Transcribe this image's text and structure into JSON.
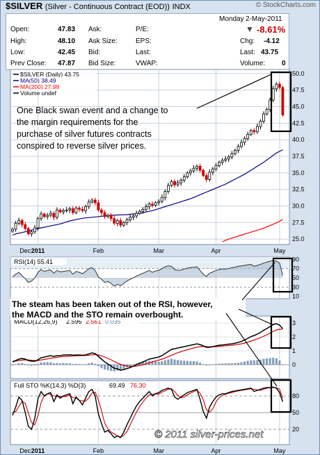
{
  "header": {
    "ticker": "$SILVER",
    "name": "(Silver - Continuous Contract (EOD))",
    "exchange": "INDX",
    "brand": "© StockCharts.com",
    "day": "Monday",
    "date": "2-May-2011",
    "pct_change": "-8.61%"
  },
  "quote": {
    "open_label": "Open:",
    "open": "47.83",
    "high_label": "High:",
    "high": "48.10",
    "low_label": "Low:",
    "low": "42.45",
    "prev_label": "Prev Close:",
    "prev": "47.87",
    "ask_label": "Ask:",
    "ask_size_label": "Ask Size:",
    "bid_label": "Bid:",
    "bid_size_label": "Bid Size:",
    "pe_label": "P/E:",
    "eps_label": "EPS:",
    "last_label": "Last:",
    "vwap_label": "VWAP:",
    "chg_label": "Chg:",
    "chg": "-4.12",
    "last2_label": "Last:",
    "last": "43.75",
    "volume_label": "Volume:",
    "volume": "0"
  },
  "annotations": {
    "swan": [
      "One Black swan event and a change to",
      "the margin requirements for the",
      "purchase of silver futures contracts",
      "conspired to reverse silver prices."
    ],
    "rsi": [
      "The steam has been taken out of the RSI, however,",
      "the MACD and the STO remain overbought."
    ],
    "copyright": "© 2011 silver-prices.net"
  },
  "colors": {
    "price_up": "#000000",
    "price_down": "#cc0000",
    "ma50": "#000080",
    "ma200": "#ff0000",
    "macd_line": "#000000",
    "signal_line": "#cc0000",
    "histogram": "#7f9bb8",
    "background": "#d6e2ef",
    "plot": "#ffffff"
  },
  "chart_data": [
    {
      "type": "line",
      "legend": [
        "$SILVER (Daily) 43.75",
        "MA(50) 38.49",
        "MA(200) 27.98",
        "Volume undef"
      ],
      "x_tick_labels": [
        "Dec",
        "2011",
        "Feb",
        "Mar",
        "Apr",
        "May"
      ],
      "yticks": [
        "50.0",
        "47.5",
        "45.0",
        "42.5",
        "40.0",
        "37.5",
        "35.0",
        "32.5",
        "30.0",
        "27.5",
        "25.0"
      ],
      "ylim": [
        24.5,
        50.3
      ],
      "x_range": [
        0,
        86
      ],
      "month_starts": [
        8,
        27,
        46,
        64,
        84
      ],
      "series": [
        {
          "name": "$SILVER (Daily) 43.75",
          "values": [
            26.5,
            27.4,
            27.8,
            27.2,
            26.6,
            25.8,
            26.1,
            26.7,
            28.1,
            28.8,
            28.4,
            28.6,
            28.9,
            28.3,
            29.4,
            29.1,
            29.3,
            29.4,
            29.6,
            29.0,
            29.7,
            29.5,
            29.3,
            29.9,
            30.6,
            30.9,
            30.5,
            29.4,
            29.0,
            28.4,
            28.6,
            28.1,
            27.4,
            27.8,
            27.1,
            27.5,
            27.9,
            28.3,
            28.5,
            28.9,
            29.2,
            29.5,
            29.9,
            30.3,
            30.1,
            30.5,
            30.7,
            31.3,
            32.2,
            33.1,
            33.7,
            33.2,
            33.5,
            33.9,
            34.4,
            35.0,
            35.3,
            35.7,
            36.0,
            35.4,
            34.6,
            34.0,
            35.1,
            35.6,
            36.1,
            36.6,
            36.9,
            37.1,
            37.4,
            37.9,
            38.4,
            39.0,
            39.6,
            40.2,
            40.8,
            41.4,
            41.2,
            42.0,
            42.8,
            43.9,
            44.6,
            46.0,
            47.7,
            48.4,
            47.9,
            43.75
          ]
        },
        {
          "name": "MA(50) 38.49",
          "values": [
            25.6,
            25.8,
            25.9,
            26.0,
            26.1,
            26.2,
            26.35,
            26.5,
            26.6,
            26.7,
            26.8,
            26.9,
            27.0,
            27.1,
            27.2,
            27.3,
            27.45,
            27.6,
            27.75,
            27.85,
            27.95,
            28.05,
            28.15,
            28.2,
            28.25,
            28.3,
            28.35,
            28.4,
            28.45,
            28.5,
            28.55,
            28.6,
            28.62,
            28.64,
            28.66,
            28.68,
            28.7,
            28.75,
            28.8,
            28.85,
            28.9,
            29.0,
            29.1,
            29.2,
            29.3,
            29.45,
            29.6,
            29.75,
            29.9,
            30.05,
            30.2,
            30.35,
            30.5,
            30.65,
            30.8,
            30.95,
            31.1,
            31.3,
            31.5,
            31.7,
            31.9,
            32.1,
            32.3,
            32.5,
            32.7,
            32.9,
            33.1,
            33.3,
            33.55,
            33.8,
            34.05,
            34.3,
            34.55,
            34.8,
            35.1,
            35.4,
            35.7,
            36.0,
            36.3,
            36.6,
            36.95,
            37.3,
            37.65,
            38.0,
            38.25,
            38.49
          ]
        },
        {
          "name": "MA(200) 27.98",
          "values": [
            null,
            null,
            null,
            null,
            null,
            null,
            null,
            null,
            null,
            null,
            null,
            null,
            null,
            null,
            null,
            null,
            null,
            null,
            null,
            null,
            null,
            null,
            null,
            null,
            null,
            null,
            null,
            null,
            null,
            null,
            null,
            null,
            null,
            null,
            null,
            null,
            null,
            null,
            null,
            null,
            null,
            null,
            null,
            null,
            null,
            null,
            null,
            null,
            null,
            null,
            null,
            null,
            null,
            null,
            null,
            null,
            null,
            null,
            null,
            null,
            null,
            null,
            null,
            null,
            null,
            null,
            24.6,
            24.8,
            25.0,
            25.15,
            25.3,
            25.45,
            25.6,
            25.75,
            25.9,
            26.05,
            26.2,
            26.35,
            26.5,
            26.65,
            26.85,
            27.05,
            27.25,
            27.45,
            27.7,
            27.98
          ]
        }
      ]
    },
    {
      "type": "line",
      "legend": [
        "RSI(14) 55.41"
      ],
      "yticks": [
        "90",
        "70",
        "50",
        "30",
        "10"
      ],
      "ylim": [
        5,
        95
      ],
      "series": [
        {
          "name": "RSI(14) 55.41",
          "values": [
            52,
            58,
            62,
            55,
            48,
            40,
            43,
            50,
            62,
            68,
            64,
            66,
            67,
            60,
            66,
            63,
            64,
            65,
            66,
            58,
            64,
            62,
            59,
            64,
            70,
            72,
            66,
            52,
            47,
            40,
            42,
            38,
            32,
            36,
            33,
            38,
            43,
            47,
            50,
            54,
            57,
            60,
            63,
            66,
            62,
            65,
            66,
            70,
            74,
            76,
            75,
            68,
            66,
            67,
            69,
            71,
            72,
            73,
            74,
            66,
            58,
            53,
            60,
            63,
            66,
            68,
            69,
            69,
            70,
            72,
            73,
            75,
            76,
            77,
            78,
            79,
            75,
            77,
            79,
            82,
            84,
            86,
            87,
            86,
            82,
            55.41
          ]
        }
      ]
    },
    {
      "type": "line",
      "legend": [
        "MACD(12,26,9)",
        "2.596",
        "2.561",
        "0.035"
      ],
      "yticks": [
        "3",
        "2",
        "1",
        "0"
      ],
      "ylim": [
        -0.8,
        3.3
      ],
      "series": [
        {
          "name": "2.596",
          "values": [
            0.2,
            0.3,
            0.4,
            0.45,
            0.4,
            0.3,
            0.25,
            0.25,
            0.35,
            0.5,
            0.55,
            0.6,
            0.65,
            0.6,
            0.65,
            0.65,
            0.7,
            0.7,
            0.72,
            0.68,
            0.7,
            0.7,
            0.68,
            0.7,
            0.78,
            0.85,
            0.8,
            0.6,
            0.4,
            0.2,
            0.05,
            -0.1,
            -0.25,
            -0.3,
            -0.4,
            -0.35,
            -0.28,
            -0.2,
            -0.1,
            0.0,
            0.1,
            0.2,
            0.3,
            0.4,
            0.45,
            0.5,
            0.55,
            0.65,
            0.8,
            0.95,
            1.1,
            1.15,
            1.2,
            1.25,
            1.3,
            1.35,
            1.4,
            1.45,
            1.5,
            1.45,
            1.35,
            1.25,
            1.25,
            1.3,
            1.35,
            1.4,
            1.42,
            1.45,
            1.48,
            1.5,
            1.55,
            1.6,
            1.68,
            1.78,
            1.9,
            2.02,
            2.1,
            2.2,
            2.32,
            2.48,
            2.6,
            2.75,
            2.9,
            2.95,
            2.85,
            2.596
          ]
        },
        {
          "name": "2.561",
          "values": [
            0.25,
            0.27,
            0.3,
            0.33,
            0.35,
            0.34,
            0.32,
            0.3,
            0.3,
            0.34,
            0.38,
            0.42,
            0.47,
            0.5,
            0.53,
            0.56,
            0.58,
            0.6,
            0.62,
            0.63,
            0.64,
            0.65,
            0.65,
            0.66,
            0.68,
            0.71,
            0.73,
            0.7,
            0.64,
            0.55,
            0.45,
            0.35,
            0.23,
            0.12,
            0.02,
            -0.05,
            -0.1,
            -0.12,
            -0.12,
            -0.1,
            -0.06,
            0.0,
            0.06,
            0.13,
            0.2,
            0.27,
            0.33,
            0.4,
            0.48,
            0.58,
            0.68,
            0.78,
            0.86,
            0.94,
            1.01,
            1.08,
            1.14,
            1.2,
            1.26,
            1.3,
            1.31,
            1.3,
            1.29,
            1.29,
            1.3,
            1.32,
            1.34,
            1.36,
            1.38,
            1.4,
            1.43,
            1.46,
            1.5,
            1.55,
            1.62,
            1.7,
            1.78,
            1.86,
            1.95,
            2.05,
            2.15,
            2.27,
            2.4,
            2.5,
            2.55,
            2.561
          ]
        },
        {
          "name": "0.035",
          "values": [
            -0.05,
            0.03,
            0.1,
            0.12,
            0.05,
            -0.04,
            -0.07,
            -0.05,
            0.05,
            0.16,
            0.17,
            0.18,
            0.18,
            0.1,
            0.12,
            0.09,
            0.12,
            0.1,
            0.1,
            0.05,
            0.06,
            0.05,
            0.03,
            0.04,
            0.1,
            0.14,
            0.07,
            -0.1,
            -0.24,
            -0.35,
            -0.4,
            -0.45,
            -0.48,
            -0.42,
            -0.42,
            -0.3,
            -0.18,
            -0.08,
            0.02,
            0.1,
            0.16,
            0.2,
            0.24,
            0.27,
            0.25,
            0.23,
            0.22,
            0.25,
            0.32,
            0.37,
            0.42,
            0.37,
            0.34,
            0.31,
            0.29,
            0.27,
            0.26,
            0.25,
            0.24,
            0.15,
            0.04,
            -0.05,
            -0.04,
            0.01,
            0.05,
            0.08,
            0.08,
            0.09,
            0.1,
            0.1,
            0.12,
            0.14,
            0.18,
            0.23,
            0.28,
            0.32,
            0.32,
            0.34,
            0.37,
            0.43,
            0.45,
            0.48,
            0.5,
            0.45,
            0.3,
            0.035
          ]
        }
      ]
    },
    {
      "type": "line",
      "legend": [
        "Full STO %K(14,3) %D(3)",
        "69.49",
        "76.30"
      ],
      "x_tick_labels": [
        "Dec",
        "2011",
        "Feb",
        "Mar",
        "Apr",
        "May"
      ],
      "yticks": [
        "80",
        "50",
        "20"
      ],
      "ylim": [
        0,
        100
      ],
      "series": [
        {
          "name": "69.49",
          "values": [
            45,
            60,
            78,
            72,
            50,
            25,
            20,
            40,
            75,
            88,
            80,
            84,
            86,
            70,
            82,
            76,
            80,
            82,
            84,
            66,
            78,
            72,
            64,
            76,
            88,
            92,
            80,
            48,
            30,
            15,
            18,
            12,
            5,
            8,
            5,
            15,
            28,
            40,
            52,
            62,
            70,
            76,
            82,
            88,
            80,
            84,
            86,
            90,
            92,
            94,
            92,
            78,
            74,
            78,
            82,
            86,
            88,
            90,
            92,
            74,
            52,
            40,
            60,
            70,
            78,
            82,
            84,
            84,
            86,
            88,
            89,
            90,
            91,
            92,
            93,
            94,
            88,
            90,
            92,
            94,
            95,
            95,
            96,
            94,
            86,
            69.49
          ]
        },
        {
          "name": "76.30",
          "values": [
            50,
            52,
            61,
            70,
            67,
            49,
            32,
            28,
            45,
            68,
            81,
            84,
            83,
            80,
            79,
            79,
            79,
            79,
            82,
            77,
            76,
            72,
            71,
            71,
            76,
            85,
            87,
            73,
            53,
            31,
            21,
            15,
            12,
            8,
            6,
            9,
            16,
            28,
            40,
            51,
            61,
            69,
            76,
            82,
            83,
            84,
            83,
            87,
            89,
            92,
            93,
            88,
            81,
            77,
            78,
            82,
            85,
            88,
            90,
            85,
            73,
            55,
            51,
            57,
            69,
            77,
            81,
            83,
            85,
            86,
            88,
            89,
            90,
            91,
            92,
            93,
            92,
            91,
            90,
            92,
            94,
            95,
            95,
            95,
            92,
            76.3
          ]
        }
      ]
    }
  ]
}
